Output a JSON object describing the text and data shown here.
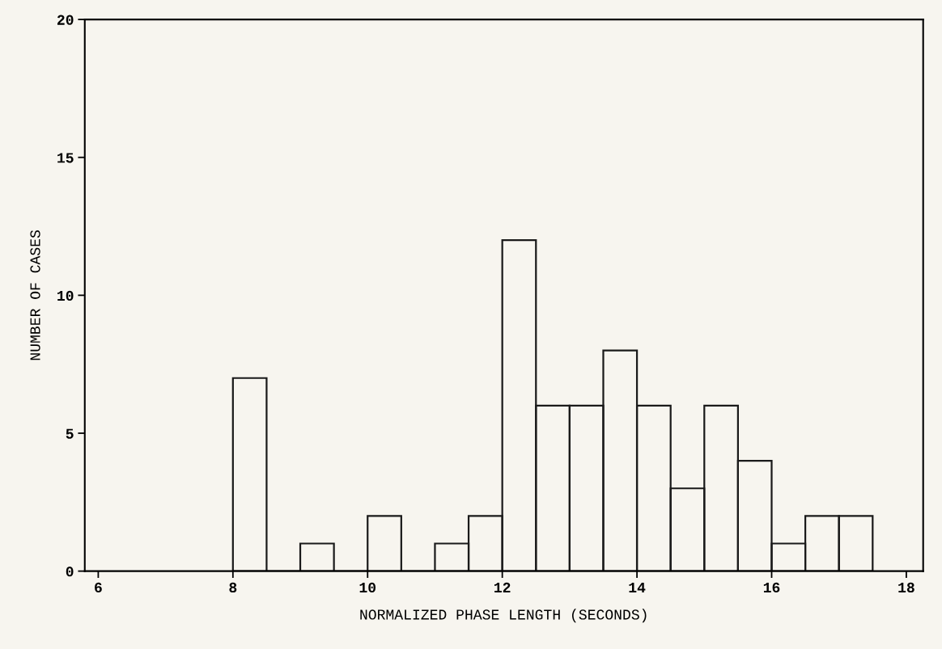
{
  "chart_data": {
    "type": "histogram",
    "xlabel": "NORMALIZED PHASE LENGTH (SECONDS)",
    "ylabel": "NUMBER OF CASES",
    "bins": [
      8,
      8.5,
      9,
      9.5,
      10,
      10.5,
      11,
      11.5,
      12,
      12.5,
      13,
      13.5,
      14,
      14.5,
      15,
      15.5,
      16,
      16.5,
      17,
      17.5
    ],
    "values": [
      7,
      0,
      1,
      0,
      2,
      0,
      1,
      2,
      12,
      6,
      6,
      8,
      6,
      3,
      6,
      4,
      1,
      2,
      2
    ],
    "color": "#1a1a1a",
    "xlim": [
      5.8,
      18.25
    ],
    "ylim": [
      0,
      20
    ],
    "xticks": [
      6,
      8,
      10,
      12,
      14,
      16,
      18
    ],
    "yticks": [
      0,
      5,
      10,
      15,
      20
    ],
    "grid": false
  }
}
